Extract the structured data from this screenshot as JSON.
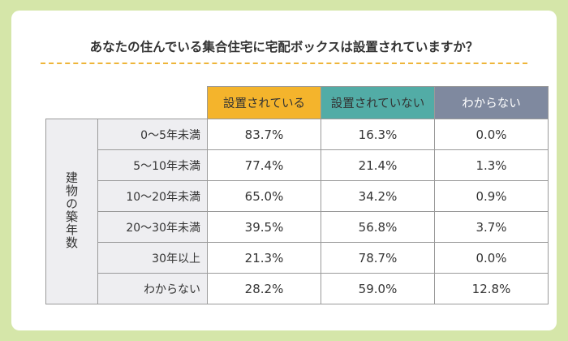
{
  "title": "あなたの住んでいる集合住宅に宅配ボックスは設置されていますか？",
  "columns": [
    "設置されている",
    "設置されていない",
    "わからない"
  ],
  "group_label": "建物の築年数",
  "rows": [
    {
      "label": "0〜5年未満",
      "values": [
        "83.7%",
        "16.3%",
        "0.0%"
      ]
    },
    {
      "label": "5〜10年未満",
      "values": [
        "77.4%",
        "21.4%",
        "1.3%"
      ]
    },
    {
      "label": "10〜20年未満",
      "values": [
        "65.0%",
        "34.2%",
        "0.9%"
      ]
    },
    {
      "label": "20〜30年未満",
      "values": [
        "39.5%",
        "56.8%",
        "3.7%"
      ]
    },
    {
      "label": "30年以上",
      "values": [
        "21.3%",
        "78.7%",
        "0.0%"
      ]
    },
    {
      "label": "わからない",
      "values": [
        "28.2%",
        "59.0%",
        "12.8%"
      ]
    }
  ],
  "colors": {
    "installed": "#f4b42c",
    "not_installed": "#52aca6",
    "unknown": "#7f899f",
    "background": "#d5e6a9"
  }
}
